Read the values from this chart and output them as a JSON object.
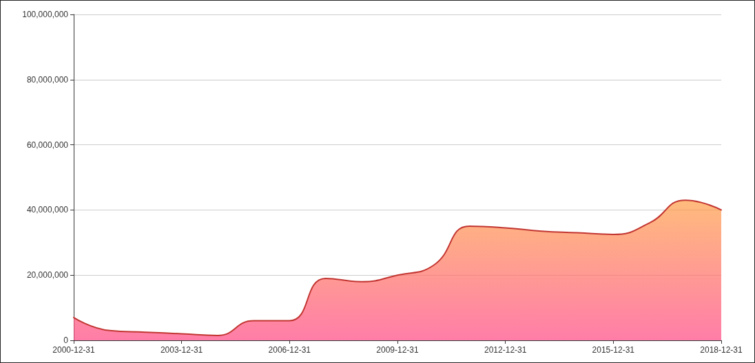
{
  "chart_data": {
    "type": "area",
    "x": [
      "2000-12-31",
      "2001-12-31",
      "2002-12-31",
      "2003-12-31",
      "2004-12-31",
      "2005-12-31",
      "2006-12-31",
      "2007-12-31",
      "2008-12-31",
      "2009-12-31",
      "2010-12-31",
      "2011-12-31",
      "2012-12-31",
      "2013-12-31",
      "2014-12-31",
      "2015-12-31",
      "2016-12-31",
      "2017-12-31",
      "2018-12-31"
    ],
    "series": [
      {
        "color": "#c23531",
        "values": [
          7000000,
          3000000,
          2500000,
          2000000,
          1500000,
          6000000,
          6000000,
          19000000,
          18000000,
          20000000,
          23000000,
          35000000,
          34500000,
          33500000,
          33000000,
          32500000,
          36000000,
          43000000,
          40000000
        ]
      }
    ],
    "xlim": [
      "2000-12-31",
      "2018-12-31"
    ],
    "xticks": [
      "2000-12-31",
      "2003-12-31",
      "2006-12-31",
      "2009-12-31",
      "2012-12-31",
      "2015-12-31",
      "2018-12-31"
    ],
    "ylim": [
      0,
      100000000
    ],
    "yticks": [
      {
        "value": 0,
        "label": "0"
      },
      {
        "value": 20000000,
        "label": "20,000,000"
      },
      {
        "value": 40000000,
        "label": "40,000,000"
      },
      {
        "value": 60000000,
        "label": "60,000,000"
      },
      {
        "value": 80000000,
        "label": "80,000,000"
      },
      {
        "value": 100000000,
        "label": "100,000,000"
      }
    ],
    "grid": "y",
    "marker": "none",
    "line_style": "solid"
  }
}
